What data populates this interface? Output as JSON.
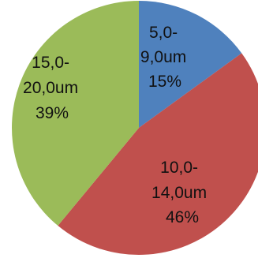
{
  "chart_data": {
    "type": "pie",
    "start_angle": "12 o'clock",
    "direction": "clockwise",
    "slices": [
      {
        "lines": [
          "5,0-",
          "9,0um",
          "15%"
        ],
        "value": 15,
        "color": "#4f81bd"
      },
      {
        "lines": [
          "10,0-",
          "14,0um",
          "46%"
        ],
        "value": 46,
        "color": "#c0504d"
      },
      {
        "lines": [
          "15,0-",
          "20,0um",
          "39%"
        ],
        "value": 39,
        "color": "#9bbb59"
      }
    ]
  }
}
